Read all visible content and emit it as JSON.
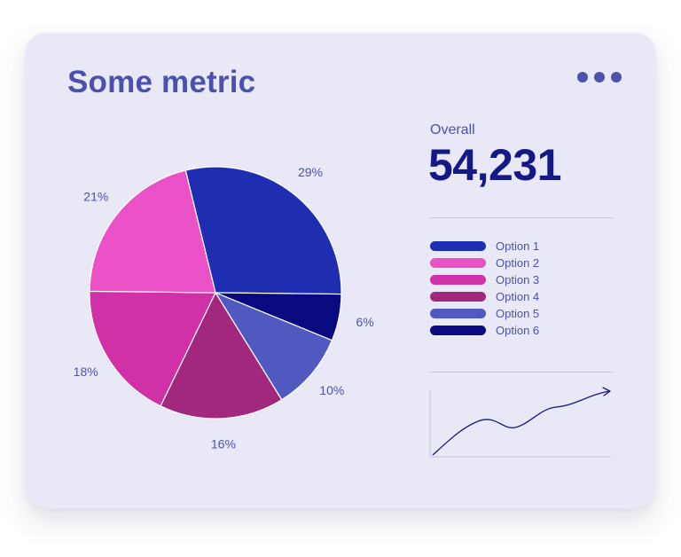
{
  "card": {
    "title": "Some metric"
  },
  "menu": {
    "icon": "more-horizontal-icon"
  },
  "summary": {
    "overall_label": "Overall",
    "overall_value": "54,231"
  },
  "chart_data": {
    "type": "pie",
    "slices": [
      {
        "name": "Option 1",
        "value": 29,
        "label": "29%",
        "color": "#1f2db0"
      },
      {
        "name": "Option 6",
        "value": 6,
        "label": "6%",
        "color": "#0a0a80"
      },
      {
        "name": "Option 5",
        "value": 10,
        "label": "10%",
        "color": "#5059c0"
      },
      {
        "name": "Option 4",
        "value": 16,
        "label": "16%",
        "color": "#a2287e"
      },
      {
        "name": "Option 3",
        "value": 18,
        "label": "18%",
        "color": "#d031a6"
      },
      {
        "name": "Option 2",
        "value": 21,
        "label": "21%",
        "color": "#ea51c6"
      }
    ],
    "legend": [
      {
        "label": "Option 1",
        "color": "#1f2db0"
      },
      {
        "label": "Option 2",
        "color": "#ea51c6"
      },
      {
        "label": "Option 3",
        "color": "#d031a6"
      },
      {
        "label": "Option 4",
        "color": "#a2287e"
      },
      {
        "label": "Option 5",
        "color": "#5059c0"
      },
      {
        "label": "Option 6",
        "color": "#0a0a80"
      }
    ],
    "legend_position": "right",
    "sparkline": {
      "type": "line",
      "trend": "up",
      "color": "#141a85"
    }
  }
}
